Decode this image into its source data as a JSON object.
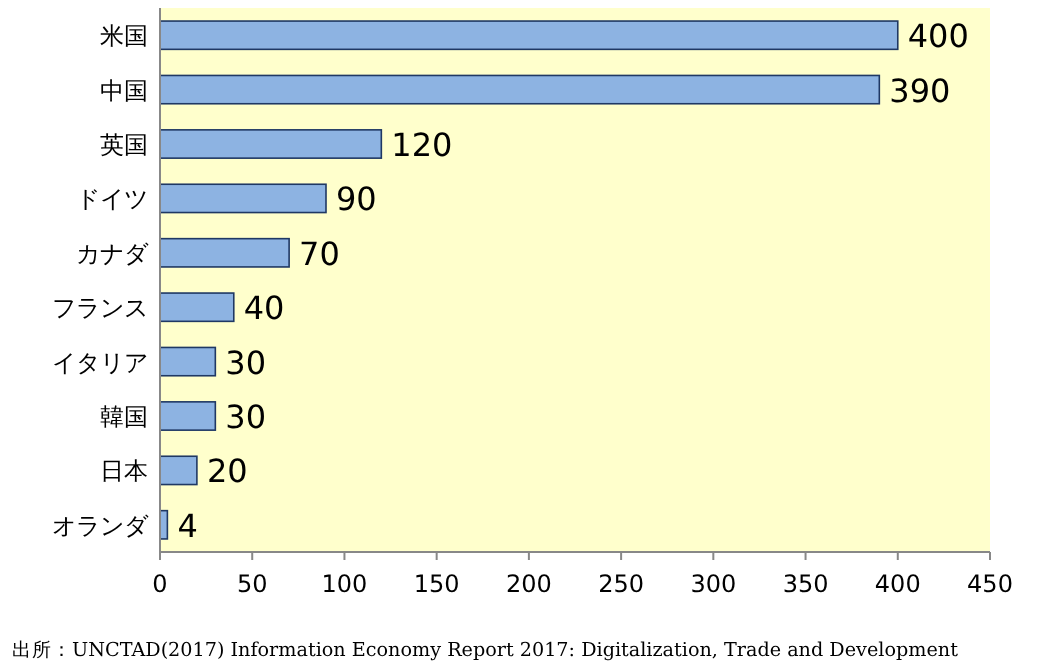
{
  "chart_data": {
    "type": "bar",
    "orientation": "horizontal",
    "categories": [
      "米国",
      "中国",
      "英国",
      "ドイツ",
      "カナダ",
      "フランス",
      "イタリア",
      "韓国",
      "日本",
      "オランダ"
    ],
    "values": [
      400,
      390,
      120,
      90,
      70,
      40,
      30,
      30,
      20,
      4
    ],
    "color": "#8db3e2",
    "xlim": [
      0,
      450
    ],
    "xticks": [
      0,
      50,
      100,
      150,
      200,
      250,
      300,
      350,
      400,
      450
    ],
    "data_labels": true,
    "annotations": [
      "出所：UNCTAD(2017) Information Economy Report 2017: Digitalization, Trade and Development"
    ]
  }
}
